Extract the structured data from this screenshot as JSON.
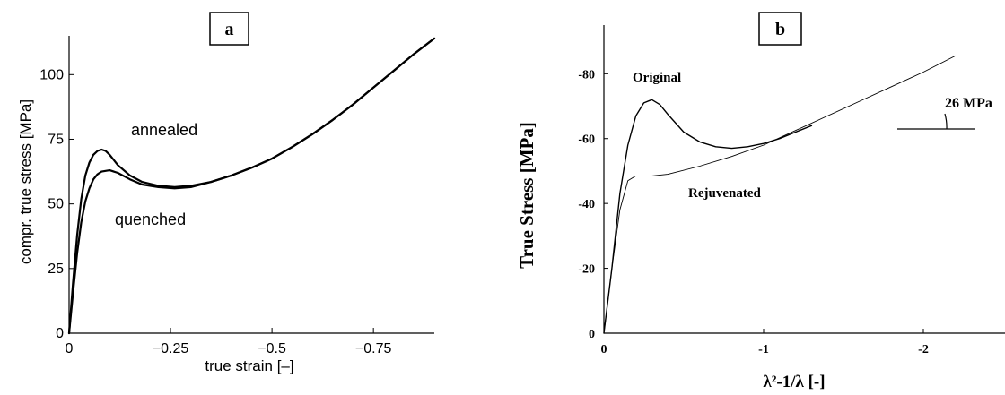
{
  "chart_data": [
    {
      "type": "line",
      "panel_label": "a",
      "xlabel": "true strain [–]",
      "ylabel": "compr. true stress [MPa]",
      "xlim": [
        0,
        -0.9
      ],
      "ylim": [
        0,
        115
      ],
      "x_ticks": [
        0,
        -0.25,
        -0.5,
        -0.75
      ],
      "x_tick_labels": [
        "0",
        "−0.25",
        "−0.5",
        "−0.75"
      ],
      "y_ticks": [
        0,
        25,
        50,
        75,
        100
      ],
      "y_tick_labels": [
        "0",
        "25",
        "50",
        "75",
        "100"
      ],
      "grid": false,
      "series": [
        {
          "name": "annealed",
          "x": [
            0,
            -0.01,
            -0.02,
            -0.03,
            -0.04,
            -0.05,
            -0.06,
            -0.07,
            -0.08,
            -0.09,
            -0.1,
            -0.12,
            -0.15,
            -0.18,
            -0.22,
            -0.26,
            -0.3,
            -0.35,
            -0.4,
            -0.45,
            -0.5,
            -0.55,
            -0.6,
            -0.65,
            -0.7,
            -0.75,
            -0.8,
            -0.85,
            -0.9
          ],
          "y": [
            0,
            20,
            38,
            52,
            61,
            66,
            69,
            70.5,
            71,
            70.5,
            69,
            65,
            61,
            58.5,
            57,
            56.5,
            57,
            58.5,
            61,
            64,
            67.5,
            72,
            77,
            82.5,
            88.5,
            95,
            101.5,
            108,
            114
          ]
        },
        {
          "name": "quenched",
          "x": [
            0,
            -0.01,
            -0.02,
            -0.03,
            -0.04,
            -0.05,
            -0.06,
            -0.07,
            -0.08,
            -0.1,
            -0.12,
            -0.15,
            -0.18,
            -0.22,
            -0.26,
            -0.3,
            -0.35,
            -0.4,
            -0.45,
            -0.5,
            -0.55,
            -0.6,
            -0.65,
            -0.7,
            -0.75,
            -0.8,
            -0.85,
            -0.9
          ],
          "y": [
            0,
            16,
            31,
            43,
            51,
            56,
            59.5,
            61.5,
            62.5,
            63,
            62,
            59.5,
            57.5,
            56.5,
            56,
            56.5,
            58.5,
            61,
            64,
            67.5,
            72,
            77,
            82.5,
            88.5,
            95,
            101.5,
            108,
            114
          ]
        }
      ]
    },
    {
      "type": "line",
      "panel_label": "b",
      "xlabel": "λ²-1/λ [-]",
      "ylabel": "True Stress [MPa]",
      "xlim": [
        0,
        -2.5
      ],
      "ylim": [
        0,
        -95
      ],
      "x_ticks": [
        0,
        -1,
        -2
      ],
      "x_tick_labels": [
        "0",
        "-1",
        "-2"
      ],
      "y_ticks": [
        0,
        -20,
        -40,
        -60,
        -80
      ],
      "y_tick_labels": [
        "0",
        "-20",
        "-40",
        "-60",
        "-80"
      ],
      "grid": false,
      "series": [
        {
          "name": "Original",
          "x": [
            0,
            -0.05,
            -0.1,
            -0.15,
            -0.2,
            -0.25,
            -0.3,
            -0.35,
            -0.4,
            -0.5,
            -0.6,
            -0.7,
            -0.8,
            -0.9,
            -1.0,
            -1.1,
            -1.2,
            -1.3
          ],
          "y": [
            0,
            -20,
            -43,
            -58,
            -67,
            -71,
            -72,
            -70.5,
            -67.5,
            -62,
            -59,
            -57.5,
            -57,
            -57.5,
            -58.5,
            -60,
            -62,
            -64
          ]
        },
        {
          "name": "Rejuvenated",
          "x": [
            0,
            -0.05,
            -0.1,
            -0.15,
            -0.2,
            -0.3,
            -0.4,
            -0.6,
            -0.8,
            -1.0,
            -1.2,
            -1.4,
            -1.6,
            -1.8,
            -2.0,
            -2.2
          ],
          "y": [
            0,
            -20,
            -38,
            -47,
            -48.5,
            -48.5,
            -49,
            -51.5,
            -54.5,
            -58,
            -62.5,
            -67,
            -71.5,
            -76,
            -80.5,
            -85.5
          ]
        }
      ],
      "annotation": {
        "text": "26 MPa"
      }
    }
  ]
}
